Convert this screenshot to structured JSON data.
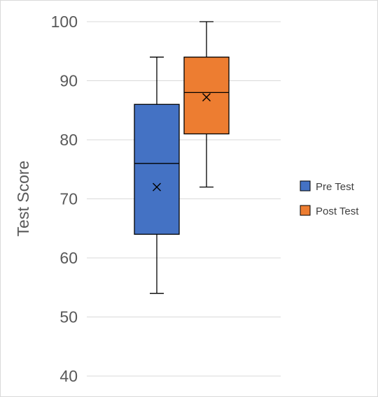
{
  "chart_data": {
    "type": "box",
    "ylabel": "Test Score",
    "ylim": [
      40,
      100
    ],
    "y_ticks": [
      40,
      50,
      60,
      70,
      80,
      90,
      100
    ],
    "grid": true,
    "legend_position": "right",
    "series": [
      {
        "name": "Pre Test",
        "color": "#4472C4",
        "min": 54,
        "q1": 64,
        "median": 76,
        "q3": 86,
        "max": 94,
        "mean": 72
      },
      {
        "name": "Post Test",
        "color": "#ED7D31",
        "min": 72,
        "q1": 81,
        "median": 88,
        "q3": 94,
        "max": 100,
        "mean": 87.2
      }
    ]
  }
}
